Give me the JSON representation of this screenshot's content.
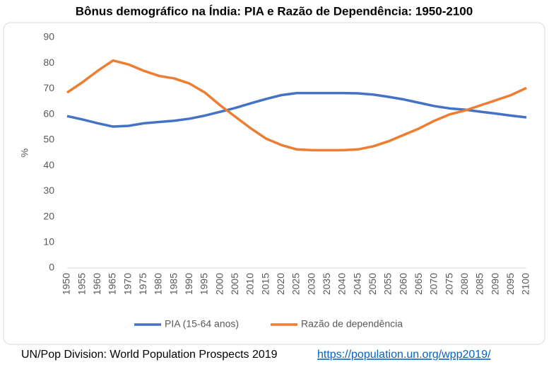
{
  "chart_data": {
    "type": "line",
    "title": "Bônus demográfico na Índia: PIA e Razão de Dependência: 1950-2100",
    "y_label": "%",
    "categories": [
      "1950",
      "1955",
      "1960",
      "1965",
      "1970",
      "1975",
      "1980",
      "1985",
      "1990",
      "1995",
      "2000",
      "2005",
      "2010",
      "2015",
      "2020",
      "2025",
      "2030",
      "2035",
      "2040",
      "2045",
      "2050",
      "2055",
      "2060",
      "2065",
      "2070",
      "2075",
      "2080",
      "2085",
      "2090",
      "2095",
      "2100"
    ],
    "series": [
      {
        "name": "PIA (15-64 anos)",
        "color": "#4472c4",
        "values": [
          59.3,
          58,
          56.5,
          55.2,
          55.5,
          56.5,
          57,
          57.5,
          58.3,
          59.5,
          61,
          62.5,
          64.3,
          66,
          67.5,
          68.3,
          68.3,
          68.3,
          68.3,
          68.2,
          67.7,
          66.8,
          65.8,
          64.5,
          63.2,
          62.3,
          61.8,
          61,
          60.3,
          59.5,
          58.8
        ]
      },
      {
        "name": "Razão de dependência",
        "color": "#ed7d31",
        "values": [
          68.5,
          72.5,
          77,
          81,
          79.5,
          77,
          75,
          74,
          72,
          68.5,
          63.5,
          59,
          54.5,
          50.5,
          48,
          46.3,
          46,
          46,
          46,
          46.3,
          47.5,
          49.5,
          52,
          54.5,
          57.5,
          60,
          61.5,
          63.5,
          65.5,
          67.5,
          70.3
        ]
      }
    ],
    "ylim": [
      0,
      90
    ],
    "yticks": [
      0,
      10,
      20,
      30,
      40,
      50,
      60,
      70,
      80,
      90
    ],
    "grid": false,
    "legend": "bottom",
    "source": "UN/Pop Division: World Population Prospects 2019",
    "source_link": "https://population.un.org/wpp2019/"
  }
}
